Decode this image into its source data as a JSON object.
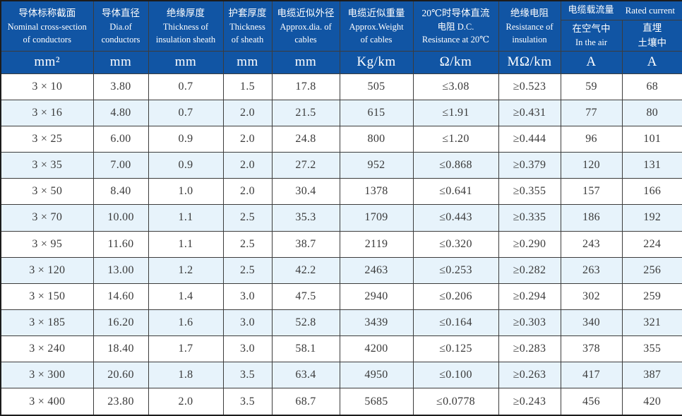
{
  "table": {
    "title": "cable-specification-table",
    "columns": [
      {
        "zh": "导体标称截面",
        "en": [
          "Nominal cross-section",
          "of conductors"
        ],
        "unit": "mm²"
      },
      {
        "zh": "导体直径",
        "en": [
          "Dia.of",
          "conductors"
        ],
        "unit": "mm"
      },
      {
        "zh": "绝缘厚度",
        "en": [
          "Thickness of",
          "insulation sheath"
        ],
        "unit": "mm"
      },
      {
        "zh": "护套厚度",
        "en": [
          "Thickness",
          "of sheath"
        ],
        "unit": "mm"
      },
      {
        "zh": "电缆近似外径",
        "en": [
          "Approx.dia. of",
          "cables"
        ],
        "unit": "mm"
      },
      {
        "zh": "电缆近似重量",
        "en": [
          "Approx.Weight",
          "of cables"
        ],
        "unit": "Kg/km"
      },
      {
        "zh": "20℃时导体直流",
        "en": [
          "电阻 D.C.",
          "Resistance at 20℃"
        ],
        "unit": "Ω/km"
      },
      {
        "zh": "绝缘电阻",
        "en": [
          "Resistance of",
          "insulation"
        ],
        "unit": "MΩ/km"
      }
    ],
    "current_group": {
      "zh": "电缆载流量",
      "en": "Rated current",
      "sub": [
        {
          "lines": [
            "在空气中",
            "In the air"
          ],
          "unit": "A"
        },
        {
          "lines": [
            "直埋",
            "土壤中"
          ],
          "unit": "A"
        }
      ]
    },
    "rows": [
      [
        "3 × 10",
        "3.80",
        "0.7",
        "1.5",
        "17.8",
        "505",
        "≤3.08",
        "≥0.523",
        "59",
        "68"
      ],
      [
        "3 × 16",
        "4.80",
        "0.7",
        "2.0",
        "21.5",
        "615",
        "≤1.91",
        "≥0.431",
        "77",
        "80"
      ],
      [
        "3 × 25",
        "6.00",
        "0.9",
        "2.0",
        "24.8",
        "800",
        "≤1.20",
        "≥0.444",
        "96",
        "101"
      ],
      [
        "3 × 35",
        "7.00",
        "0.9",
        "2.0",
        "27.2",
        "952",
        "≤0.868",
        "≥0.379",
        "120",
        "131"
      ],
      [
        "3 × 50",
        "8.40",
        "1.0",
        "2.0",
        "30.4",
        "1378",
        "≤0.641",
        "≥0.355",
        "157",
        "166"
      ],
      [
        "3 × 70",
        "10.00",
        "1.1",
        "2.5",
        "35.3",
        "1709",
        "≤0.443",
        "≥0.335",
        "186",
        "192"
      ],
      [
        "3 × 95",
        "11.60",
        "1.1",
        "2.5",
        "38.7",
        "2119",
        "≤0.320",
        "≥0.290",
        "243",
        "224"
      ],
      [
        "3 × 120",
        "13.00",
        "1.2",
        "2.5",
        "42.2",
        "2463",
        "≤0.253",
        "≥0.282",
        "263",
        "256"
      ],
      [
        "3 × 150",
        "14.60",
        "1.4",
        "3.0",
        "47.5",
        "2940",
        "≤0.206",
        "≥0.294",
        "302",
        "259"
      ],
      [
        "3 × 185",
        "16.20",
        "1.6",
        "3.0",
        "52.8",
        "3439",
        "≤0.164",
        "≥0.303",
        "340",
        "321"
      ],
      [
        "3 × 240",
        "18.40",
        "1.7",
        "3.0",
        "58.1",
        "4200",
        "≤0.125",
        "≥0.283",
        "378",
        "355"
      ],
      [
        "3 × 300",
        "20.60",
        "1.8",
        "3.5",
        "63.4",
        "4950",
        "≤0.100",
        "≥0.263",
        "417",
        "387"
      ],
      [
        "3 × 400",
        "23.80",
        "2.0",
        "3.5",
        "68.7",
        "5685",
        "≤0.0778",
        "≥0.243",
        "456",
        "420"
      ]
    ],
    "colors": {
      "header_bg": "#1155A4",
      "header_text": "#FFFFFF",
      "alt_row_bg": "#E7F3FB",
      "grid_line": "#3C3C3C",
      "data_text": "#3A3A3A"
    }
  }
}
